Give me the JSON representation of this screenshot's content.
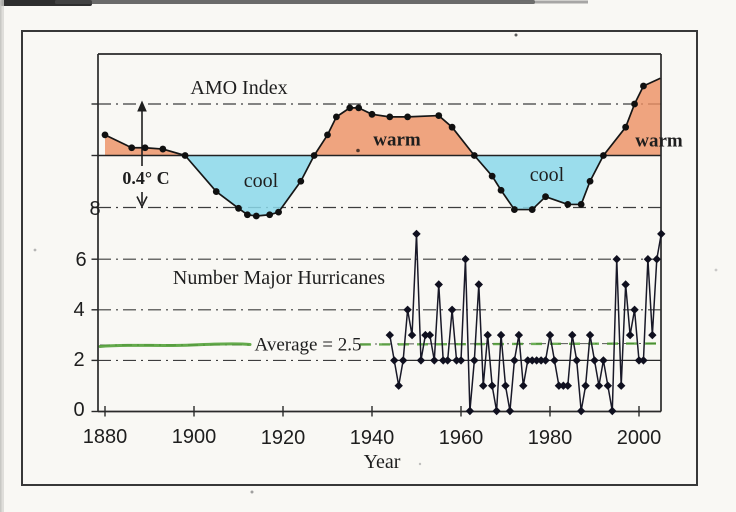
{
  "figure_type": "scanned two-panel time-series figure",
  "chart_data": [
    {
      "type": "line",
      "title": "AMO Index",
      "annotation": "0.4° C",
      "region_labels": [
        "cool",
        "warm",
        "cool",
        "warm"
      ],
      "x": [
        1880,
        1886,
        1889,
        1893,
        1898,
        1905,
        1910,
        1912,
        1914,
        1917,
        1919,
        1924,
        1927,
        1930,
        1932,
        1935,
        1937,
        1940,
        1944,
        1948,
        1955,
        1958,
        1963,
        1967,
        1969,
        1972,
        1976,
        1979,
        1984,
        1987,
        1989,
        1992,
        1997,
        1999,
        2001
      ],
      "values": [
        0.08,
        0.03,
        0.03,
        0.025,
        0,
        -0.14,
        -0.205,
        -0.23,
        -0.235,
        -0.23,
        -0.22,
        -0.1,
        0,
        0.08,
        0.15,
        0.185,
        0.185,
        0.16,
        0.15,
        0.15,
        0.155,
        0.11,
        0,
        -0.08,
        -0.135,
        -0.21,
        -0.21,
        -0.16,
        -0.19,
        -0.19,
        -0.1,
        0,
        0.11,
        0.2,
        0.27
      ],
      "curve_extension": {
        "x": 2004.8,
        "value": 0.3
      },
      "gridlines_y": [
        0.2,
        -0.2
      ],
      "zero_baseline": 0,
      "marker": "circle",
      "line_color": "#161616",
      "fill_colors": {
        "warm": "#ec8f62",
        "cool": "#8bd8ea"
      }
    },
    {
      "type": "line",
      "title": "Number Major Hurricanes",
      "x": [
        1944,
        1945,
        1946,
        1947,
        1948,
        1949,
        1950,
        1951,
        1952,
        1953,
        1954,
        1955,
        1956,
        1957,
        1958,
        1959,
        1960,
        1961,
        1962,
        1963,
        1964,
        1965,
        1966,
        1967,
        1968,
        1969,
        1970,
        1971,
        1972,
        1973,
        1974,
        1975,
        1976,
        1977,
        1978,
        1979,
        1980,
        1981,
        1982,
        1983,
        1984,
        1985,
        1986,
        1987,
        1988,
        1989,
        1990,
        1991,
        1992,
        1993,
        1994,
        1995,
        1996,
        1997,
        1998,
        1999,
        2000,
        2001,
        2002,
        2003,
        2004,
        2005
      ],
      "values": [
        3,
        2,
        1,
        2,
        4,
        3,
        7,
        2,
        3,
        3,
        2,
        5,
        2,
        2,
        4,
        2,
        2,
        6,
        0,
        2,
        5,
        1,
        3,
        1,
        0,
        3,
        1,
        0,
        2,
        3,
        1,
        2,
        2,
        2,
        2,
        2,
        3,
        2,
        1,
        1,
        1,
        3,
        2,
        0,
        1,
        3,
        2,
        1,
        2,
        1,
        0,
        6,
        1,
        5,
        3,
        4,
        2,
        2,
        6,
        3,
        6,
        7
      ],
      "average": 2.5,
      "average_label": "Average = 2.5",
      "average_line_color": "#4a9c2e",
      "yticks": [
        0,
        2,
        4,
        6,
        8
      ],
      "ylim": [
        0,
        8
      ],
      "xticks": [
        1880,
        1900,
        1920,
        1940,
        1960,
        1980,
        2000
      ],
      "xlabel": "Year",
      "marker": "diamond",
      "line_color": "#191928"
    }
  ]
}
